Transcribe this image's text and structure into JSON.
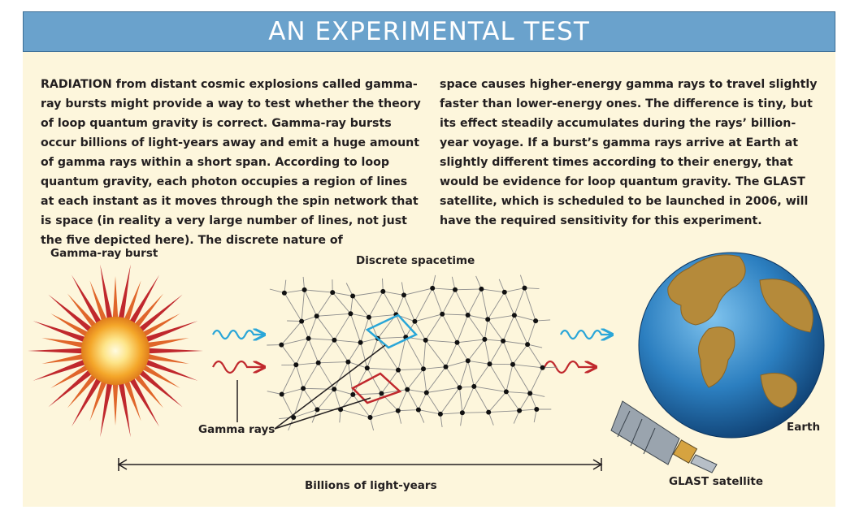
{
  "banner": {
    "title": "AN EXPERIMENTAL TEST"
  },
  "body": {
    "left": "RADIATION from distant cosmic explosions called gamma-ray bursts might provide a way to test whether the theory of loop quantum gravity is correct. Gamma-ray bursts occur billions of light-years away and emit a huge amount of gamma rays within a short span. According to loop quantum gravity, each photon occupies a region of lines at each instant as it moves through the spin network that is space (in reality a very large number of lines, not just the five depicted here). The discrete nature of",
    "right": "space causes higher-energy gamma rays to travel slightly faster than lower-energy ones. The difference is tiny, but its effect steadily accumulates during the rays’ billion-year voyage. If a burst’s gamma rays arrive at Earth at slightly different times according to their energy, that would be evidence for loop quantum gravity. The GLAST satellite, which is scheduled to be launched in 2006, will have the required sensitivity for this experiment."
  },
  "labels": {
    "burst": "Gamma-ray burst",
    "spacetime": "Discrete spacetime",
    "gamma_rays": "Gamma rays",
    "distance": "Billions of light-years",
    "earth": "Earth",
    "satellite": "GLAST satellite"
  },
  "colors": {
    "banner": "#6aa2cc",
    "panel": "#fdf6dc",
    "high_energy_ray": "#2aa6d8",
    "low_energy_ray": "#c0282d",
    "burst_rays": "#c0282d",
    "burst_core": "#f7c340",
    "ocean": "#2c7fc0",
    "land": "#b58a3a"
  }
}
